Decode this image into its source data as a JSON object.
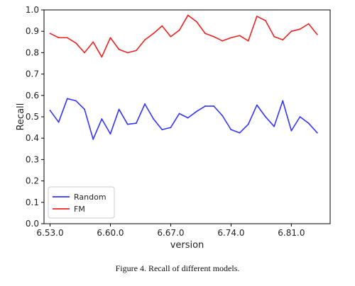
{
  "caption": "Figure 4.  Recall of different models.",
  "chart_data": {
    "type": "line",
    "title": "",
    "xlabel": "version",
    "ylabel": "Recall",
    "xlim": [
      6.523,
      6.855
    ],
    "ylim": [
      0.0,
      1.0
    ],
    "grid": false,
    "legend_position": "lower-left",
    "x_ticks": [
      "6.53.0",
      "6.60.0",
      "6.67.0",
      "6.74.0",
      "6.81.0"
    ],
    "y_ticks": [
      "0.0",
      "0.1",
      "0.2",
      "0.3",
      "0.4",
      "0.5",
      "0.6",
      "0.7",
      "0.8",
      "0.9",
      "1.0"
    ],
    "x": [
      6.53,
      6.54,
      6.55,
      6.56,
      6.57,
      6.58,
      6.59,
      6.6,
      6.61,
      6.62,
      6.63,
      6.64,
      6.65,
      6.66,
      6.67,
      6.68,
      6.69,
      6.7,
      6.71,
      6.72,
      6.73,
      6.74,
      6.75,
      6.76,
      6.77,
      6.78,
      6.79,
      6.8,
      6.81,
      6.82,
      6.83,
      6.84
    ],
    "series": [
      {
        "name": "Random",
        "color": "#3333ff",
        "values": [
          0.53,
          0.475,
          0.585,
          0.575,
          0.535,
          0.395,
          0.49,
          0.42,
          0.535,
          0.465,
          0.47,
          0.56,
          0.49,
          0.44,
          0.45,
          0.515,
          0.495,
          0.525,
          0.55,
          0.55,
          0.505,
          0.44,
          0.425,
          0.465,
          0.555,
          0.5,
          0.455,
          0.575,
          0.435,
          0.5,
          0.47,
          0.425
        ]
      },
      {
        "name": "FM",
        "color": "#ee2222",
        "values": [
          0.89,
          0.87,
          0.87,
          0.845,
          0.8,
          0.85,
          0.78,
          0.87,
          0.815,
          0.8,
          0.81,
          0.86,
          0.89,
          0.925,
          0.875,
          0.905,
          0.975,
          0.945,
          0.89,
          0.875,
          0.855,
          0.87,
          0.88,
          0.855,
          0.97,
          0.95,
          0.875,
          0.86,
          0.9,
          0.91,
          0.935,
          0.885
        ]
      }
    ]
  }
}
